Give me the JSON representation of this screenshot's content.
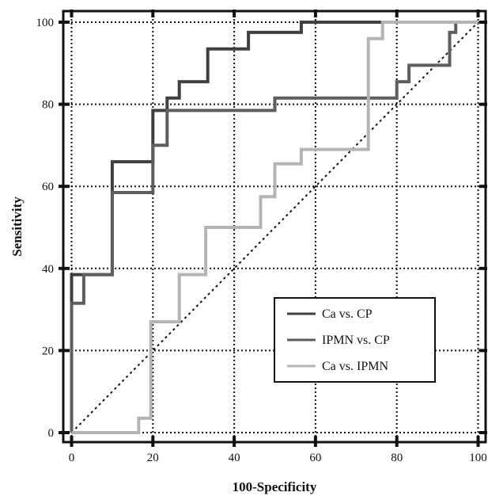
{
  "chart_data": {
    "type": "line",
    "title": "",
    "xlabel": "100-Specificity",
    "ylabel": "Sensitivity",
    "xlim": [
      0,
      100
    ],
    "ylim": [
      0,
      100
    ],
    "xticks": [
      0,
      20,
      40,
      60,
      80,
      100
    ],
    "yticks": [
      0,
      20,
      40,
      60,
      80,
      100
    ],
    "grid": true,
    "legend_position": "bottom-right",
    "diagonal_reference": true,
    "series": [
      {
        "name": "Ca vs. CP",
        "color": "#404040",
        "step": true,
        "points": [
          [
            0,
            0
          ],
          [
            0,
            38.5
          ],
          [
            10,
            38.5
          ],
          [
            10,
            66
          ],
          [
            20,
            66
          ],
          [
            20,
            78.5
          ],
          [
            23.5,
            78.5
          ],
          [
            23.5,
            81.5
          ],
          [
            26.5,
            81.5
          ],
          [
            26.5,
            85.5
          ],
          [
            33.5,
            85.5
          ],
          [
            33.5,
            93.5
          ],
          [
            43.5,
            93.5
          ],
          [
            43.5,
            97.5
          ],
          [
            56.5,
            97.5
          ],
          [
            56.5,
            100
          ],
          [
            100,
            100
          ]
        ]
      },
      {
        "name": "IPMN vs. CP",
        "color": "#5e5e5e",
        "step": true,
        "points": [
          [
            0,
            0
          ],
          [
            0,
            31.5
          ],
          [
            3,
            31.5
          ],
          [
            3,
            38.5
          ],
          [
            10,
            38.5
          ],
          [
            10,
            58.5
          ],
          [
            20,
            58.5
          ],
          [
            20,
            70
          ],
          [
            23.5,
            70
          ],
          [
            23.5,
            78.5
          ],
          [
            50,
            78.5
          ],
          [
            50,
            81.5
          ],
          [
            80,
            81.5
          ],
          [
            80,
            85.5
          ],
          [
            83,
            85.5
          ],
          [
            83,
            89.5
          ],
          [
            93,
            89.5
          ],
          [
            93,
            97.5
          ],
          [
            94.5,
            97.5
          ],
          [
            94.5,
            100
          ],
          [
            100,
            100
          ]
        ]
      },
      {
        "name": "Ca vs. IPMN",
        "color": "#b4b4b4",
        "step": true,
        "points": [
          [
            0,
            0
          ],
          [
            16.5,
            0
          ],
          [
            16.5,
            3.5
          ],
          [
            19.5,
            3.5
          ],
          [
            19.5,
            27
          ],
          [
            26.5,
            27
          ],
          [
            26.5,
            38.5
          ],
          [
            33,
            38.5
          ],
          [
            33,
            50
          ],
          [
            46.5,
            50
          ],
          [
            46.5,
            57.5
          ],
          [
            50,
            57.5
          ],
          [
            50,
            65.5
          ],
          [
            56.5,
            65.5
          ],
          [
            56.5,
            69
          ],
          [
            73,
            69
          ],
          [
            73,
            96
          ],
          [
            76.5,
            96
          ],
          [
            76.5,
            100
          ],
          [
            100,
            100
          ]
        ]
      }
    ]
  }
}
